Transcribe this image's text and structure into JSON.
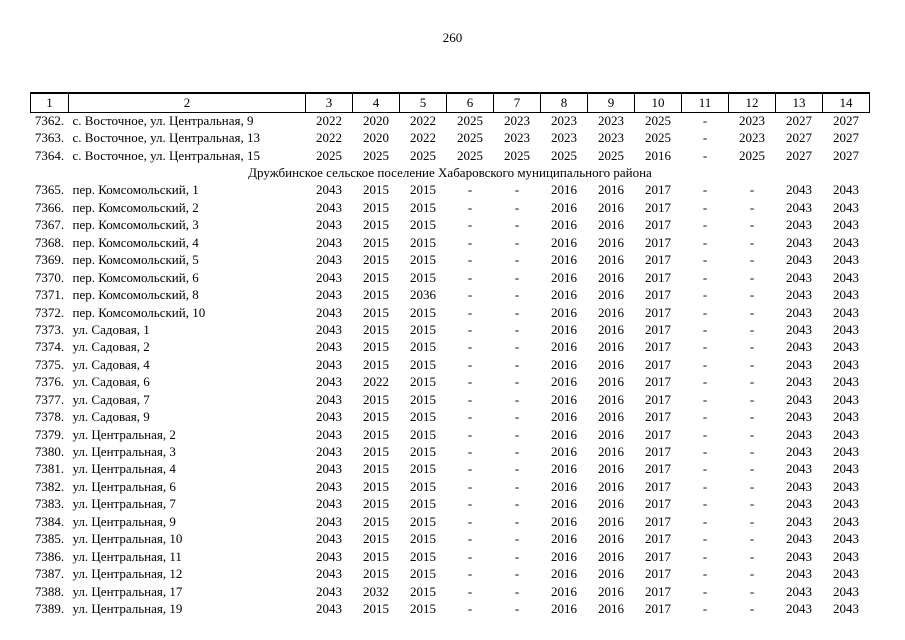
{
  "page": {
    "number": "260"
  },
  "table": {
    "columns": [
      "1",
      "2",
      "3",
      "4",
      "5",
      "6",
      "7",
      "8",
      "9",
      "10",
      "11",
      "12",
      "13",
      "14"
    ],
    "rows": [
      {
        "type": "data",
        "num": "7362.",
        "address": "с. Восточное, ул. Центральная, 9",
        "values": [
          "2022",
          "2020",
          "2022",
          "2025",
          "2023",
          "2023",
          "2023",
          "2025",
          "-",
          "2023",
          "2027",
          "2027"
        ]
      },
      {
        "type": "data",
        "num": "7363.",
        "address": "с. Восточное, ул. Центральная, 13",
        "values": [
          "2022",
          "2020",
          "2022",
          "2025",
          "2023",
          "2023",
          "2023",
          "2025",
          "-",
          "2023",
          "2027",
          "2027"
        ]
      },
      {
        "type": "data",
        "num": "7364.",
        "address": "с. Восточное, ул. Центральная, 15",
        "values": [
          "2025",
          "2025",
          "2025",
          "2025",
          "2025",
          "2025",
          "2025",
          "2016",
          "-",
          "2025",
          "2027",
          "2027"
        ]
      },
      {
        "type": "section",
        "label": "Дружбинское сельское поселение Хабаровского муниципального района"
      },
      {
        "type": "data",
        "num": "7365.",
        "address": "пер. Комсомольский, 1",
        "values": [
          "2043",
          "2015",
          "2015",
          "-",
          "-",
          "2016",
          "2016",
          "2017",
          "-",
          "-",
          "2043",
          "2043"
        ]
      },
      {
        "type": "data",
        "num": "7366.",
        "address": "пер. Комсомольский, 2",
        "values": [
          "2043",
          "2015",
          "2015",
          "-",
          "-",
          "2016",
          "2016",
          "2017",
          "-",
          "-",
          "2043",
          "2043"
        ]
      },
      {
        "type": "data",
        "num": "7367.",
        "address": "пер. Комсомольский, 3",
        "values": [
          "2043",
          "2015",
          "2015",
          "-",
          "-",
          "2016",
          "2016",
          "2017",
          "-",
          "-",
          "2043",
          "2043"
        ]
      },
      {
        "type": "data",
        "num": "7368.",
        "address": "пер. Комсомольский, 4",
        "values": [
          "2043",
          "2015",
          "2015",
          "-",
          "-",
          "2016",
          "2016",
          "2017",
          "-",
          "-",
          "2043",
          "2043"
        ]
      },
      {
        "type": "data",
        "num": "7369.",
        "address": "пер. Комсомольский, 5",
        "values": [
          "2043",
          "2015",
          "2015",
          "-",
          "-",
          "2016",
          "2016",
          "2017",
          "-",
          "-",
          "2043",
          "2043"
        ]
      },
      {
        "type": "data",
        "num": "7370.",
        "address": "пер. Комсомольский, 6",
        "values": [
          "2043",
          "2015",
          "2015",
          "-",
          "-",
          "2016",
          "2016",
          "2017",
          "-",
          "-",
          "2043",
          "2043"
        ]
      },
      {
        "type": "data",
        "num": "7371.",
        "address": "пер. Комсомольский, 8",
        "values": [
          "2043",
          "2015",
          "2036",
          "-",
          "-",
          "2016",
          "2016",
          "2017",
          "-",
          "-",
          "2043",
          "2043"
        ]
      },
      {
        "type": "data",
        "num": "7372.",
        "address": "пер. Комсомольский, 10",
        "values": [
          "2043",
          "2015",
          "2015",
          "-",
          "-",
          "2016",
          "2016",
          "2017",
          "-",
          "-",
          "2043",
          "2043"
        ]
      },
      {
        "type": "data",
        "num": "7373.",
        "address": "ул. Садовая, 1",
        "values": [
          "2043",
          "2015",
          "2015",
          "-",
          "-",
          "2016",
          "2016",
          "2017",
          "-",
          "-",
          "2043",
          "2043"
        ]
      },
      {
        "type": "data",
        "num": "7374.",
        "address": "ул. Садовая, 2",
        "values": [
          "2043",
          "2015",
          "2015",
          "-",
          "-",
          "2016",
          "2016",
          "2017",
          "-",
          "-",
          "2043",
          "2043"
        ]
      },
      {
        "type": "data",
        "num": "7375.",
        "address": "ул. Садовая, 4",
        "values": [
          "2043",
          "2015",
          "2015",
          "-",
          "-",
          "2016",
          "2016",
          "2017",
          "-",
          "-",
          "2043",
          "2043"
        ]
      },
      {
        "type": "data",
        "num": "7376.",
        "address": "ул. Садовая, 6",
        "values": [
          "2043",
          "2022",
          "2015",
          "-",
          "-",
          "2016",
          "2016",
          "2017",
          "-",
          "-",
          "2043",
          "2043"
        ]
      },
      {
        "type": "data",
        "num": "7377.",
        "address": "ул. Садовая, 7",
        "values": [
          "2043",
          "2015",
          "2015",
          "-",
          "-",
          "2016",
          "2016",
          "2017",
          "-",
          "-",
          "2043",
          "2043"
        ]
      },
      {
        "type": "data",
        "num": "7378.",
        "address": "ул. Садовая, 9",
        "values": [
          "2043",
          "2015",
          "2015",
          "-",
          "-",
          "2016",
          "2016",
          "2017",
          "-",
          "-",
          "2043",
          "2043"
        ]
      },
      {
        "type": "data",
        "num": "7379.",
        "address": "ул. Центральная, 2",
        "values": [
          "2043",
          "2015",
          "2015",
          "-",
          "-",
          "2016",
          "2016",
          "2017",
          "-",
          "-",
          "2043",
          "2043"
        ]
      },
      {
        "type": "data",
        "num": "7380.",
        "address": "ул. Центральная, 3",
        "values": [
          "2043",
          "2015",
          "2015",
          "-",
          "-",
          "2016",
          "2016",
          "2017",
          "-",
          "-",
          "2043",
          "2043"
        ]
      },
      {
        "type": "data",
        "num": "7381.",
        "address": "ул. Центральная, 4",
        "values": [
          "2043",
          "2015",
          "2015",
          "-",
          "-",
          "2016",
          "2016",
          "2017",
          "-",
          "-",
          "2043",
          "2043"
        ]
      },
      {
        "type": "data",
        "num": "7382.",
        "address": "ул. Центральная, 6",
        "values": [
          "2043",
          "2015",
          "2015",
          "-",
          "-",
          "2016",
          "2016",
          "2017",
          "-",
          "-",
          "2043",
          "2043"
        ]
      },
      {
        "type": "data",
        "num": "7383.",
        "address": "ул. Центральная, 7",
        "values": [
          "2043",
          "2015",
          "2015",
          "-",
          "-",
          "2016",
          "2016",
          "2017",
          "-",
          "-",
          "2043",
          "2043"
        ]
      },
      {
        "type": "data",
        "num": "7384.",
        "address": "ул. Центральная, 9",
        "values": [
          "2043",
          "2015",
          "2015",
          "-",
          "-",
          "2016",
          "2016",
          "2017",
          "-",
          "-",
          "2043",
          "2043"
        ]
      },
      {
        "type": "data",
        "num": "7385.",
        "address": "ул. Центральная, 10",
        "values": [
          "2043",
          "2015",
          "2015",
          "-",
          "-",
          "2016",
          "2016",
          "2017",
          "-",
          "-",
          "2043",
          "2043"
        ]
      },
      {
        "type": "data",
        "num": "7386.",
        "address": "ул. Центральная, 11",
        "values": [
          "2043",
          "2015",
          "2015",
          "-",
          "-",
          "2016",
          "2016",
          "2017",
          "-",
          "-",
          "2043",
          "2043"
        ]
      },
      {
        "type": "data",
        "num": "7387.",
        "address": "ул. Центральная, 12",
        "values": [
          "2043",
          "2015",
          "2015",
          "-",
          "-",
          "2016",
          "2016",
          "2017",
          "-",
          "-",
          "2043",
          "2043"
        ]
      },
      {
        "type": "data",
        "num": "7388.",
        "address": "ул. Центральная, 17",
        "values": [
          "2043",
          "2032",
          "2015",
          "-",
          "-",
          "2016",
          "2016",
          "2017",
          "-",
          "-",
          "2043",
          "2043"
        ]
      },
      {
        "type": "data",
        "num": "7389.",
        "address": "ул. Центральная, 19",
        "values": [
          "2043",
          "2015",
          "2015",
          "-",
          "-",
          "2016",
          "2016",
          "2017",
          "-",
          "-",
          "2043",
          "2043"
        ]
      }
    ]
  }
}
